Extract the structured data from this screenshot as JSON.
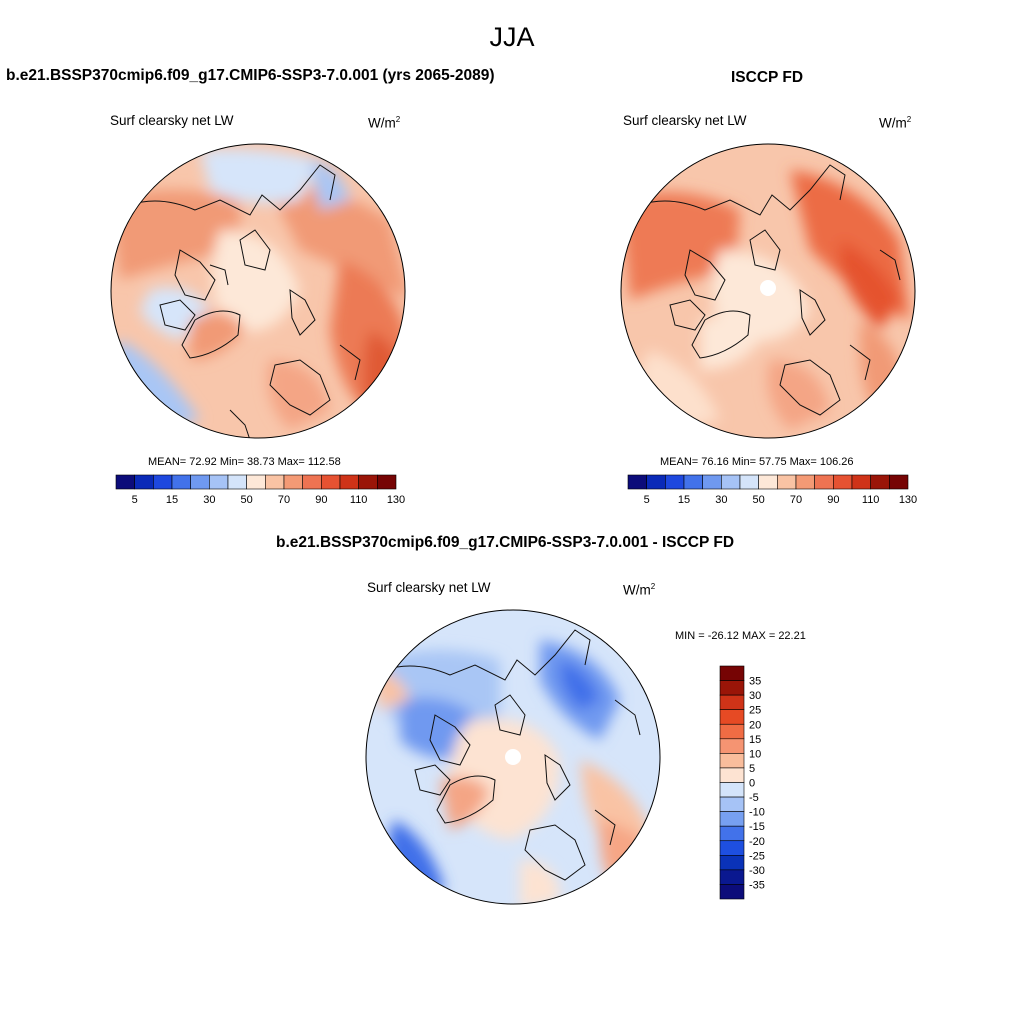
{
  "season": "JJA",
  "panel_left": {
    "title": "b.e21.BSSP370cmip6.f09_g17.CMIP6-SSP3-7.0.001 (yrs 2065-2089)",
    "subtitle": "Surf clearsky net LW",
    "units_base": "W/m",
    "units_exp": "2",
    "stats": "MEAN=  72.92  Min=  38.73  Max= 112.58"
  },
  "panel_right": {
    "title": "ISCCP FD",
    "subtitle": "Surf clearsky net LW",
    "units_base": "W/m",
    "units_exp": "2",
    "stats": "MEAN=  76.16  Min=  57.75  Max= 106.26"
  },
  "panel_diff": {
    "title": "b.e21.BSSP370cmip6.f09_g17.CMIP6-SSP3-7.0.001 - ISCCP FD",
    "subtitle": "Surf clearsky net LW",
    "units_base": "W/m",
    "units_exp": "2",
    "minmax": "MIN = -26.12 MAX =  22.21"
  },
  "colorbar_abs": {
    "labels": [
      "5",
      "15",
      "30",
      "50",
      "70",
      "90",
      "110",
      "130"
    ],
    "colors": [
      "#0c0c7a",
      "#0a2ab8",
      "#1e48df",
      "#4272ea",
      "#6f99f0",
      "#a6c3f6",
      "#d4e4fa",
      "#fde8d8",
      "#f9c3a4",
      "#f49a75",
      "#ee7352",
      "#e65232",
      "#cf3318",
      "#9a1508",
      "#760404"
    ]
  },
  "colorbar_diff": {
    "labels": [
      "35",
      "30",
      "25",
      "20",
      "15",
      "10",
      "5",
      "0",
      "-5",
      "-10",
      "-15",
      "-20",
      "-25",
      "-30",
      "-35"
    ],
    "colors": [
      "#760404",
      "#9a1508",
      "#cf3318",
      "#e64a24",
      "#f06c44",
      "#f59472",
      "#f9bd9c",
      "#fde3d2",
      "#d4e4fa",
      "#a6c3f6",
      "#77a0f1",
      "#4272ea",
      "#1e4fe0",
      "#0a32b8",
      "#0a1890",
      "#0c0c7a"
    ]
  }
}
